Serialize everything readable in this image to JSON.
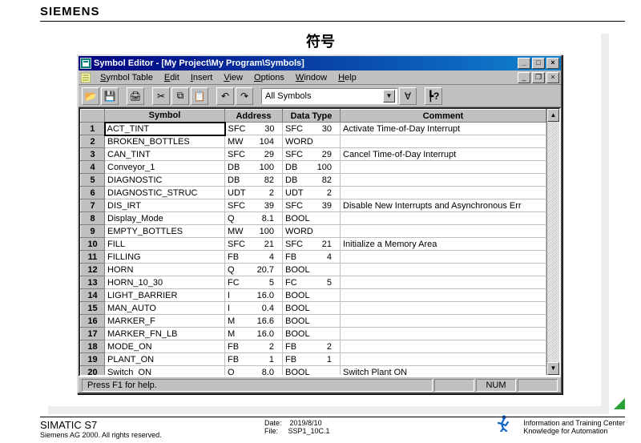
{
  "brand": "SIEMENS",
  "slide_title": "符号",
  "window": {
    "title": "Symbol Editor - [My Project\\My Program\\Symbols]",
    "menus": [
      "Symbol Table",
      "Edit",
      "Insert",
      "View",
      "Options",
      "Window",
      "Help"
    ],
    "filter_label": "All Symbols"
  },
  "columns": [
    "Symbol",
    "Address",
    "Data Type",
    "Comment"
  ],
  "col_widths": [
    "150px",
    "72px",
    "72px",
    "auto"
  ],
  "rows": [
    {
      "n": 1,
      "sym": "ACT_TINT",
      "addr_t": "SFC",
      "addr_n": "30",
      "dt_t": "SFC",
      "dt_n": "30",
      "cmt": "Activate Time-of-Day Interrupt",
      "sel": true
    },
    {
      "n": 2,
      "sym": "BROKEN_BOTTLES",
      "addr_t": "MW",
      "addr_n": "104",
      "dt_t": "WORD",
      "dt_n": "",
      "cmt": ""
    },
    {
      "n": 3,
      "sym": "CAN_TINT",
      "addr_t": "SFC",
      "addr_n": "29",
      "dt_t": "SFC",
      "dt_n": "29",
      "cmt": "Cancel Time-of-Day Interrupt"
    },
    {
      "n": 4,
      "sym": "Conveyor_1",
      "addr_t": "DB",
      "addr_n": "100",
      "dt_t": "DB",
      "dt_n": "100",
      "cmt": ""
    },
    {
      "n": 5,
      "sym": "DIAGNOSTIC",
      "addr_t": "DB",
      "addr_n": "82",
      "dt_t": "DB",
      "dt_n": "82",
      "cmt": ""
    },
    {
      "n": 6,
      "sym": "DIAGNOSTIC_STRUC",
      "addr_t": "UDT",
      "addr_n": "2",
      "dt_t": "UDT",
      "dt_n": "2",
      "cmt": ""
    },
    {
      "n": 7,
      "sym": "DIS_IRT",
      "addr_t": "SFC",
      "addr_n": "39",
      "dt_t": "SFC",
      "dt_n": "39",
      "cmt": "Disable New Interrupts and Asynchronous Err"
    },
    {
      "n": 8,
      "sym": "Display_Mode",
      "addr_t": "Q",
      "addr_n": "8.1",
      "dt_t": "BOOL",
      "dt_n": "",
      "cmt": ""
    },
    {
      "n": 9,
      "sym": "EMPTY_BOTTLES",
      "addr_t": "MW",
      "addr_n": "100",
      "dt_t": "WORD",
      "dt_n": "",
      "cmt": ""
    },
    {
      "n": 10,
      "sym": "FILL",
      "addr_t": "SFC",
      "addr_n": "21",
      "dt_t": "SFC",
      "dt_n": "21",
      "cmt": "Initialize a Memory Area"
    },
    {
      "n": 11,
      "sym": "FILLING",
      "addr_t": "FB",
      "addr_n": "4",
      "dt_t": "FB",
      "dt_n": "4",
      "cmt": ""
    },
    {
      "n": 12,
      "sym": "HORN",
      "addr_t": "Q",
      "addr_n": "20.7",
      "dt_t": "BOOL",
      "dt_n": "",
      "cmt": ""
    },
    {
      "n": 13,
      "sym": "HORN_10_30",
      "addr_t": "FC",
      "addr_n": "5",
      "dt_t": "FC",
      "dt_n": "5",
      "cmt": ""
    },
    {
      "n": 14,
      "sym": "LIGHT_BARRIER",
      "addr_t": "I",
      "addr_n": "16.0",
      "dt_t": "BOOL",
      "dt_n": "",
      "cmt": ""
    },
    {
      "n": 15,
      "sym": "MAN_AUTO",
      "addr_t": "I",
      "addr_n": "0.4",
      "dt_t": "BOOL",
      "dt_n": "",
      "cmt": ""
    },
    {
      "n": 16,
      "sym": "MARKER_F",
      "addr_t": "M",
      "addr_n": "16.6",
      "dt_t": "BOOL",
      "dt_n": "",
      "cmt": ""
    },
    {
      "n": 17,
      "sym": "MARKER_FN_LB",
      "addr_t": "M",
      "addr_n": "16.0",
      "dt_t": "BOOL",
      "dt_n": "",
      "cmt": ""
    },
    {
      "n": 18,
      "sym": "MODE_ON",
      "addr_t": "FB",
      "addr_n": "2",
      "dt_t": "FB",
      "dt_n": "2",
      "cmt": ""
    },
    {
      "n": 19,
      "sym": "PLANT_ON",
      "addr_t": "FB",
      "addr_n": "1",
      "dt_t": "FB",
      "dt_n": "1",
      "cmt": ""
    },
    {
      "n": 20,
      "sym": "Switch_ON",
      "addr_t": "Q",
      "addr_n": "8.0",
      "dt_t": "BOOL",
      "dt_n": "",
      "cmt": "Switch Plant ON"
    }
  ],
  "status": {
    "help": "Press F1 for help.",
    "num": "NUM"
  },
  "footer": {
    "product": "SIMATIC  S7",
    "copyright": "Siemens AG 2000.  All rights reserved.",
    "date_lbl": "Date:",
    "date": "2019/8/10",
    "file_lbl": "File:",
    "file": "SSP1_10C.1",
    "r1": "Information   and  Training  Center",
    "r2": "Knowledge  for Automation"
  }
}
